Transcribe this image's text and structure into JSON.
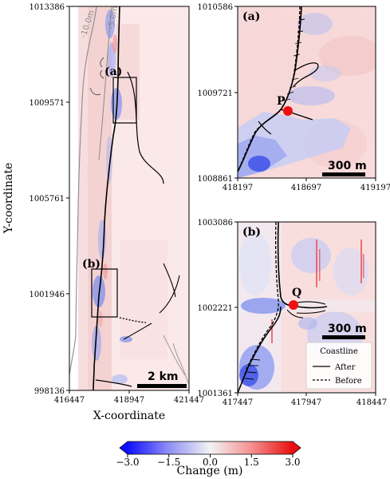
{
  "chart_data": [
    {
      "type": "heatmap",
      "panel": "overview",
      "xlabel": "X-coordinate",
      "ylabel": "Y-coordinate",
      "x_ticks": [
        "416447",
        "418947",
        "421447"
      ],
      "y_ticks": [
        "1013386",
        "1009571",
        "1005761",
        "1001946",
        "998136"
      ],
      "xlim": [
        416447,
        421447
      ],
      "ylim": [
        998136,
        1013386
      ],
      "contours": [
        "-10.0m",
        "-5.0m"
      ],
      "boxes": [
        "(a)",
        "(b)"
      ],
      "scalebar": "2 km"
    },
    {
      "type": "heatmap",
      "panel": "zoom-a",
      "label": "(a)",
      "x_ticks": [
        "418197",
        "418697",
        "419197"
      ],
      "y_ticks": [
        "1010586",
        "1009721",
        "1008861"
      ],
      "xlim": [
        418197,
        419197
      ],
      "ylim": [
        1008861,
        1010586
      ],
      "point": "P",
      "scalebar": "300 m"
    },
    {
      "type": "heatmap",
      "panel": "zoom-b",
      "label": "(b)",
      "x_ticks": [
        "417447",
        "417947",
        "418447"
      ],
      "y_ticks": [
        "1003086",
        "1002221",
        "1001361"
      ],
      "xlim": [
        417447,
        418447
      ],
      "ylim": [
        1001361,
        1003086
      ],
      "point": "Q",
      "scalebar": "300 m",
      "legend": {
        "title": "Coastline",
        "entries": [
          "After",
          "Before"
        ]
      }
    }
  ],
  "colorbar": {
    "label": "Change (m)",
    "range": [
      -3.0,
      3.0
    ],
    "ticks": [
      "−3.0",
      "−1.5",
      "0.0",
      "1.5",
      "3.0"
    ],
    "colors": {
      "low": "#1a1aff",
      "mid": "#f5f5f5",
      "high": "#ee1111"
    }
  }
}
